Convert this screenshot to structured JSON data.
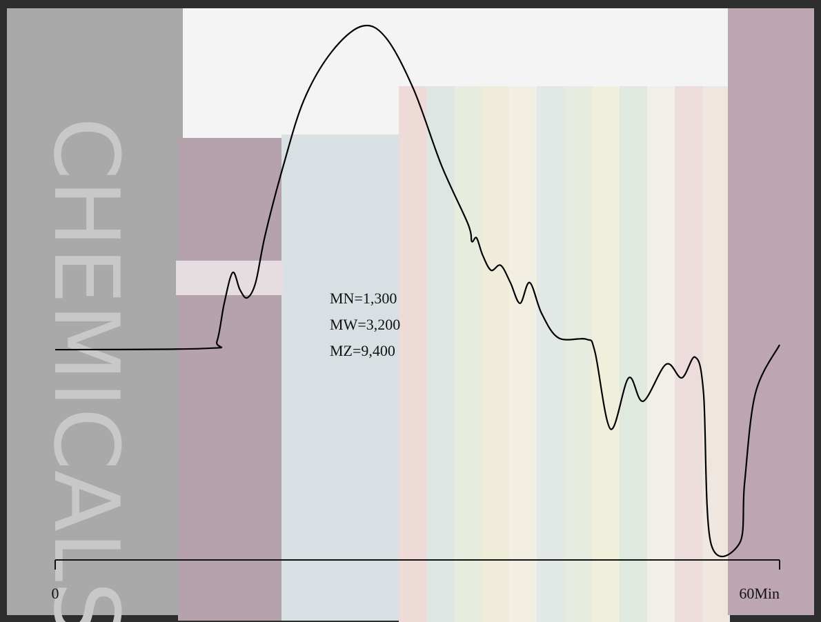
{
  "background": {
    "texts": [
      "CHEMICALS"
    ]
  },
  "chart_data": {
    "type": "line",
    "annotations": [
      "MN=1,300",
      "MW=3,200",
      "MZ=9,400"
    ],
    "x": [
      0,
      12.6,
      13.4,
      14.0,
      14.7,
      15.3,
      15.9,
      16.6,
      17.4,
      18.9,
      20.6,
      22.9,
      25.4,
      27.4,
      29.7,
      32.0,
      34.2,
      34.5,
      34.9,
      35.4,
      36.1,
      36.9,
      37.7,
      38.5,
      39.3,
      40.3,
      41.7,
      44.0,
      44.7,
      46.0,
      47.5,
      48.7,
      50.6,
      51.9,
      53.0,
      53.7,
      54.3,
      56.7,
      57.1,
      58.0,
      60
    ],
    "values": [
      0.2,
      0.6,
      2.8,
      14.5,
      24,
      18.7,
      16.2,
      20.9,
      35.7,
      57,
      77.2,
      92.1,
      100,
      96.4,
      80.4,
      57,
      38.9,
      33.6,
      34.7,
      29.4,
      24.7,
      26.2,
      20.9,
      14.5,
      20.9,
      11.3,
      3.8,
      3.4,
      -0.4,
      -24.3,
      -8.5,
      -15.7,
      -4.3,
      -8.5,
      -2.1,
      -13.2,
      -59.4,
      -59.4,
      -40.9,
      -13.2,
      1.7
    ],
    "color": "#000000",
    "xlim": [
      0,
      60
    ],
    "xticks": [
      0,
      {
        "value": 60,
        "label": "60Min"
      }
    ],
    "ylim": [
      -60,
      100
    ]
  }
}
